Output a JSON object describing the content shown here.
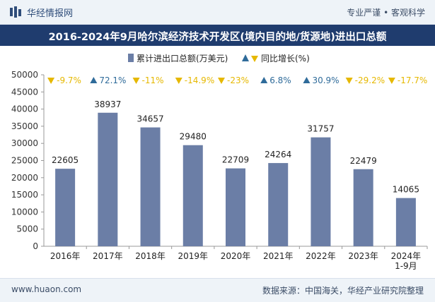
{
  "header": {
    "brand": "华经情报网",
    "slogan": "专业严谨 • 客观科学"
  },
  "footer": {
    "website": "www.huaon.com",
    "source": "数据来源：中国海关，华经产业研究院整理"
  },
  "colors": {
    "bar": "#6b7ea6",
    "up": "#2f6b9a",
    "down": "#e6b800",
    "title_bg": "#1f3c6e"
  },
  "chart_data": {
    "type": "bar",
    "title": "2016-2024年9月哈尔滨经济技术开发区(境内目的地/货源地)进出口总额",
    "categories": [
      "2016年",
      "2017年",
      "2018年",
      "2019年",
      "2020年",
      "2021年",
      "2022年",
      "2023年",
      "2024年\n1-9月"
    ],
    "series": [
      {
        "name": "累计进出口总额(万美元)",
        "values": [
          22605,
          38937,
          34657,
          29480,
          22709,
          24264,
          31757,
          22479,
          14065
        ]
      },
      {
        "name": "同比增长(%)",
        "values": [
          -9.7,
          72.1,
          -11,
          -14.9,
          -23,
          6.8,
          30.9,
          -29.2,
          -17.7
        ],
        "labels": [
          "-9.7%",
          "72.1%",
          "-11%",
          "-14.9%",
          "-23%",
          "6.8%",
          "30.9%",
          "-29.2%",
          "-17.7%"
        ]
      }
    ],
    "ylim": [
      0,
      50000
    ],
    "yticks": [
      0,
      5000,
      10000,
      15000,
      20000,
      25000,
      30000,
      35000,
      40000,
      45000,
      50000
    ],
    "legend_position": "top-center",
    "grid": false
  }
}
